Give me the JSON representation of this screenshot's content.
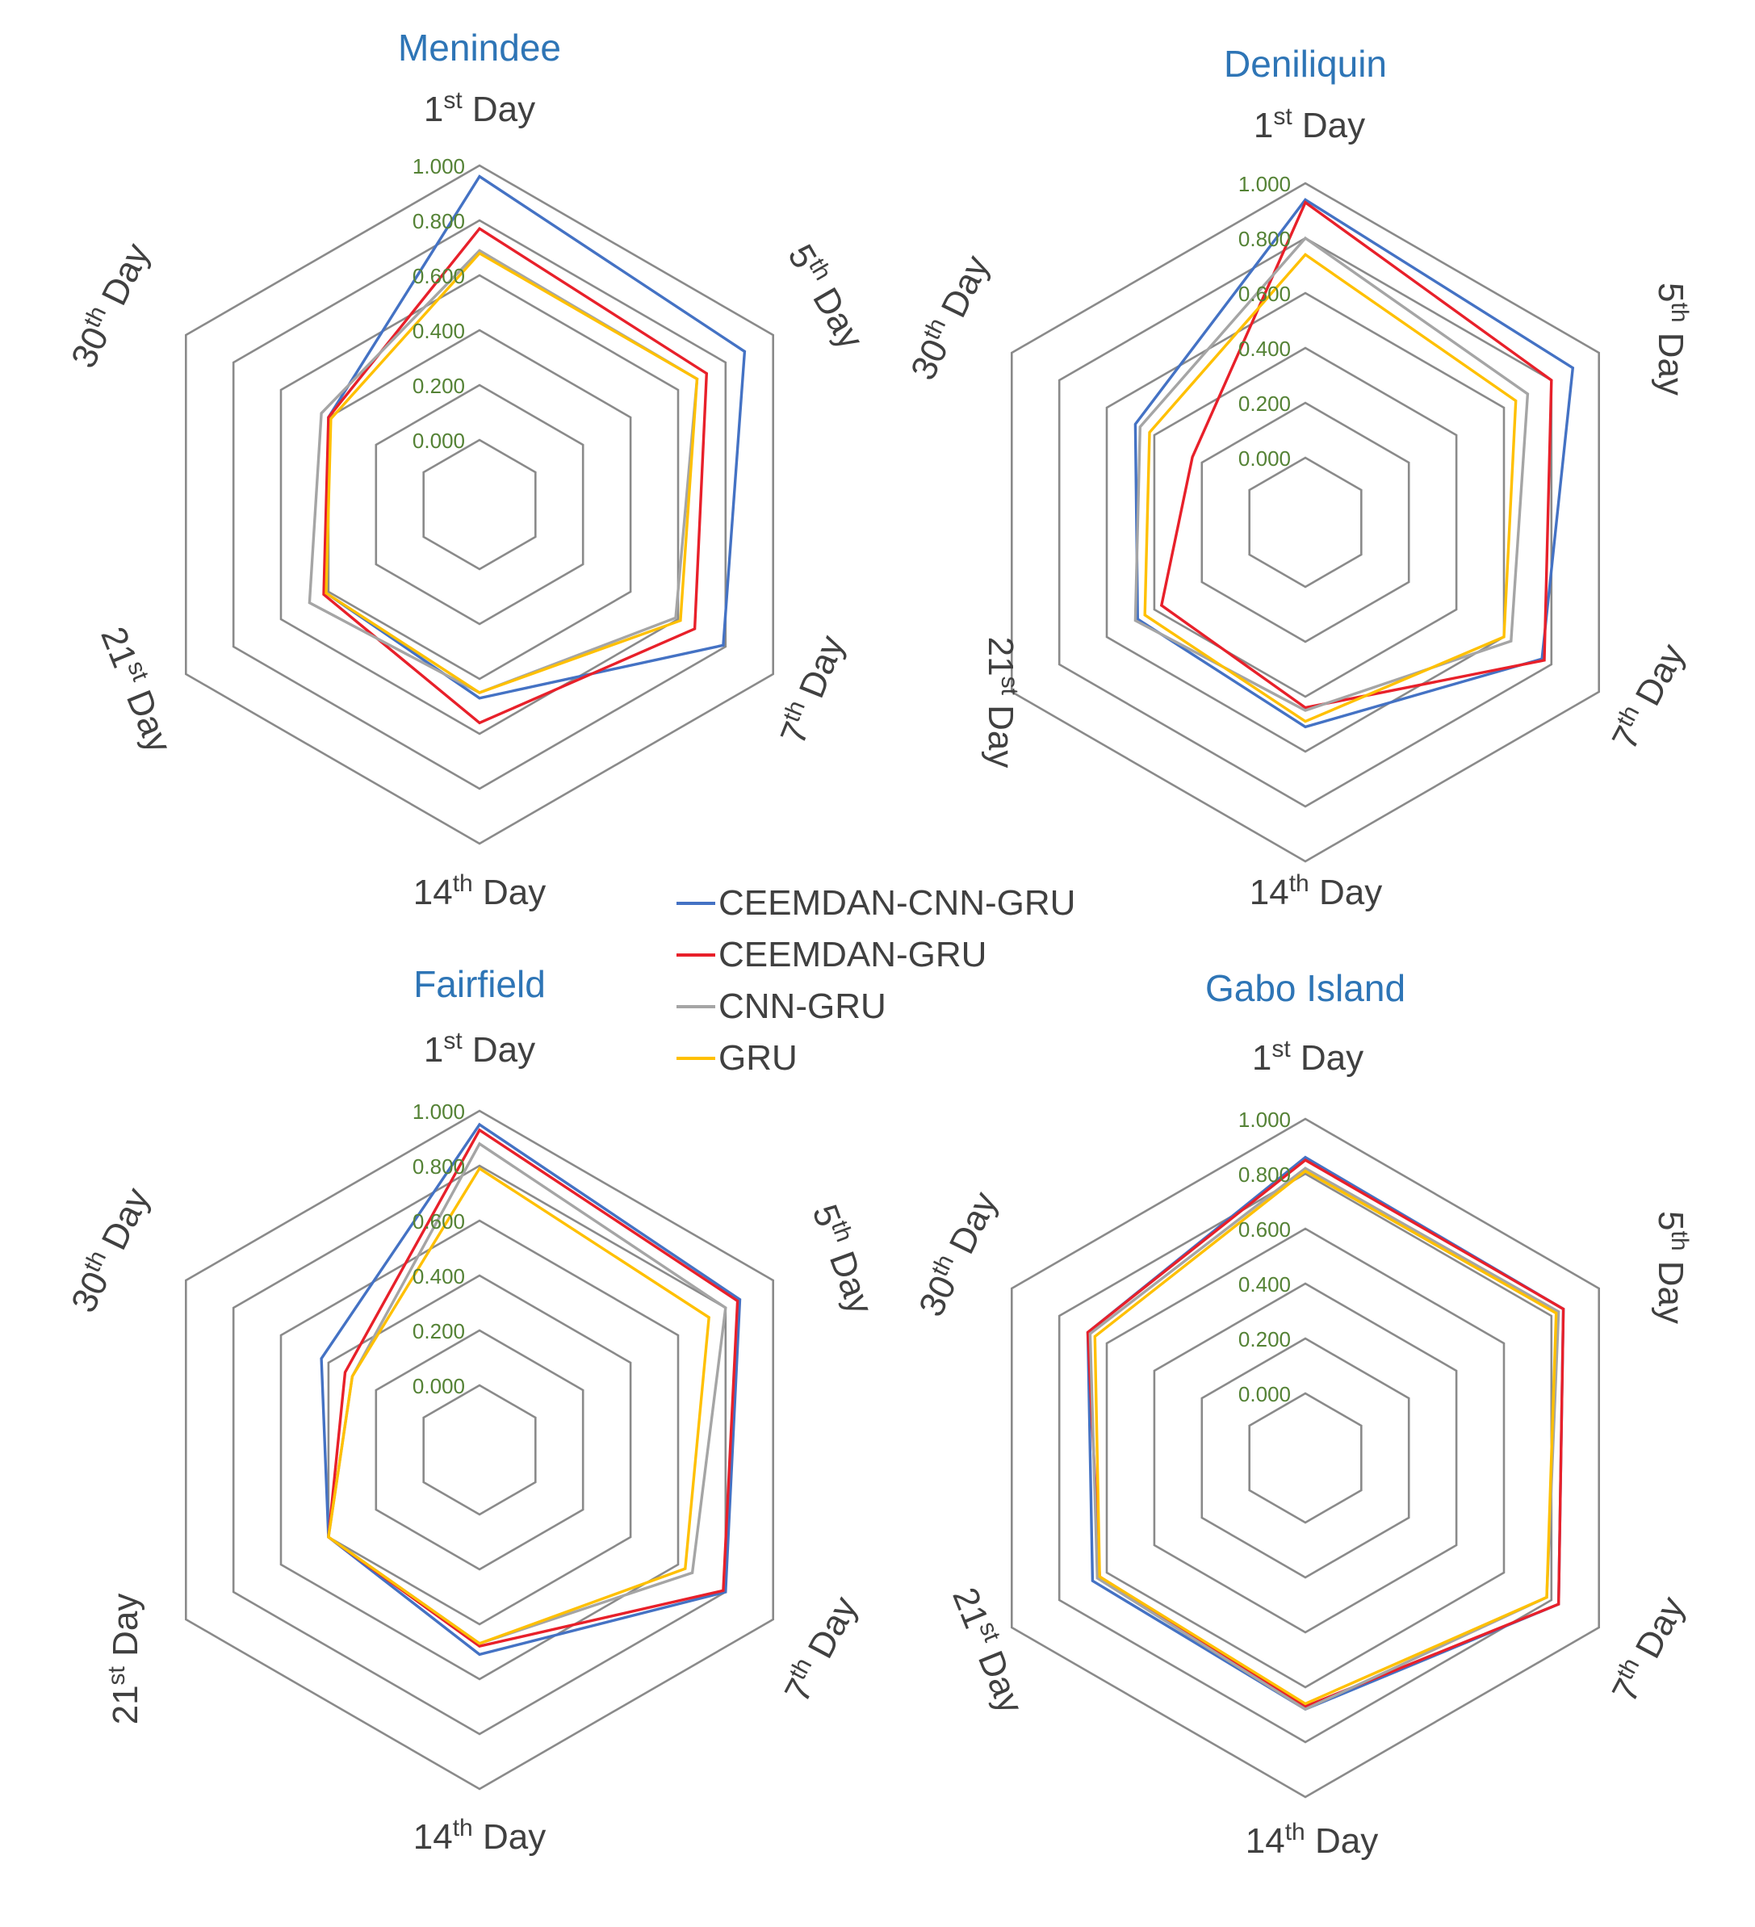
{
  "legend": [
    {
      "label": "CEEMDAN-CNN-GRU",
      "color": "#4472C4"
    },
    {
      "label": "CEEMDAN-GRU",
      "color": "#E8202A"
    },
    {
      "label": "CNN-GRU",
      "color": "#A5A5A5"
    },
    {
      "label": "GRU",
      "color": "#FFC000"
    }
  ],
  "chart_data": [
    {
      "type": "radar",
      "title": "Menindee",
      "axes": [
        {
          "base": "1",
          "sup": "st",
          "rest": " Day"
        },
        {
          "base": "5",
          "sup": "th",
          "rest": " Day"
        },
        {
          "base": "7",
          "sup": "th",
          "rest": " Day"
        },
        {
          "base": "14",
          "sup": "th",
          "rest": " Day"
        },
        {
          "base": "21",
          "sup": "st",
          "rest": " Day"
        },
        {
          "base": "30",
          "sup": "th",
          "rest": " Day"
        }
      ],
      "ticks": [
        "0.000",
        "0.200",
        "0.400",
        "0.600",
        "0.800",
        "1.000"
      ],
      "range": [
        0,
        1
      ],
      "series": [
        {
          "name": "CEEMDAN-CNN-GRU",
          "values": [
            0.96,
            0.88,
            0.79,
            0.47,
            0.41,
            0.4
          ]
        },
        {
          "name": "CEEMDAN-GRU",
          "values": [
            0.77,
            0.72,
            0.67,
            0.56,
            0.42,
            0.4
          ]
        },
        {
          "name": "CNN-GRU",
          "values": [
            0.69,
            0.68,
            0.59,
            0.45,
            0.48,
            0.43
          ]
        },
        {
          "name": "GRU",
          "values": [
            0.68,
            0.68,
            0.61,
            0.45,
            0.41,
            0.39
          ]
        }
      ]
    },
    {
      "type": "radar",
      "title": "Deniliquin",
      "axes": [
        {
          "base": "1",
          "sup": "st",
          "rest": " Day"
        },
        {
          "base": "5",
          "sup": "th",
          "rest": " Day"
        },
        {
          "base": "7",
          "sup": "th",
          "rest": " Day"
        },
        {
          "base": "14",
          "sup": "th",
          "rest": " Day"
        },
        {
          "base": "21",
          "sup": "st",
          "rest": " Day"
        },
        {
          "base": "30",
          "sup": "th",
          "rest": " Day"
        }
      ],
      "ticks": [
        "0.000",
        "0.200",
        "0.400",
        "0.600",
        "0.800",
        "1.000"
      ],
      "range": [
        0,
        1
      ],
      "series": [
        {
          "name": "CEEMDAN-CNN-GRU",
          "values": [
            0.94,
            0.89,
            0.76,
            0.51,
            0.47,
            0.48
          ]
        },
        {
          "name": "CEEMDAN-GRU",
          "values": [
            0.93,
            0.8,
            0.77,
            0.44,
            0.37,
            0.24
          ]
        },
        {
          "name": "CNN-GRU",
          "values": [
            0.8,
            0.7,
            0.63,
            0.45,
            0.48,
            0.46
          ]
        },
        {
          "name": "GRU",
          "values": [
            0.74,
            0.65,
            0.6,
            0.49,
            0.44,
            0.42
          ]
        }
      ]
    },
    {
      "type": "radar",
      "title": "Fairfield",
      "axes": [
        {
          "base": "1",
          "sup": "st",
          "rest": " Day"
        },
        {
          "base": "5",
          "sup": "th",
          "rest": " Day"
        },
        {
          "base": "7",
          "sup": "th",
          "rest": " Day"
        },
        {
          "base": "14",
          "sup": "th",
          "rest": " Day"
        },
        {
          "base": "21",
          "sup": "st",
          "rest": " Day"
        },
        {
          "base": "30",
          "sup": "th",
          "rest": " Day"
        }
      ],
      "ticks": [
        "0.000",
        "0.200",
        "0.400",
        "0.600",
        "0.800",
        "1.000"
      ],
      "range": [
        0,
        1
      ],
      "series": [
        {
          "name": "CEEMDAN-CNN-GRU",
          "values": [
            0.95,
            0.86,
            0.8,
            0.51,
            0.4,
            0.43
          ]
        },
        {
          "name": "CEEMDAN-GRU",
          "values": [
            0.93,
            0.85,
            0.79,
            0.48,
            0.4,
            0.33
          ]
        },
        {
          "name": "CNN-GRU",
          "values": [
            0.88,
            0.8,
            0.66,
            0.47,
            0.4,
            0.3
          ]
        },
        {
          "name": "GRU",
          "values": [
            0.79,
            0.73,
            0.63,
            0.47,
            0.4,
            0.3
          ]
        }
      ]
    },
    {
      "type": "radar",
      "title": "Gabo Island",
      "axes": [
        {
          "base": "1",
          "sup": "st",
          "rest": " Day"
        },
        {
          "base": "5",
          "sup": "th",
          "rest": " Day"
        },
        {
          "base": "7",
          "sup": "th",
          "rest": " Day"
        },
        {
          "base": "14",
          "sup": "th",
          "rest": " Day"
        },
        {
          "base": "21",
          "sup": "st",
          "rest": " Day"
        },
        {
          "base": "30",
          "sup": "th",
          "rest": " Day"
        }
      ],
      "ticks": [
        "0.000",
        "0.200",
        "0.400",
        "0.600",
        "0.800",
        "1.000"
      ],
      "range": [
        0,
        1
      ],
      "series": [
        {
          "name": "CEEMDAN-CNN-GRU",
          "values": [
            0.86,
            0.85,
            0.83,
            0.68,
            0.66,
            0.68
          ]
        },
        {
          "name": "CEEMDAN-GRU",
          "values": [
            0.85,
            0.85,
            0.83,
            0.67,
            0.63,
            0.68
          ]
        },
        {
          "name": "CNN-GRU",
          "values": [
            0.82,
            0.83,
            0.78,
            0.68,
            0.64,
            0.67
          ]
        },
        {
          "name": "GRU",
          "values": [
            0.81,
            0.82,
            0.78,
            0.66,
            0.63,
            0.65
          ]
        }
      ]
    }
  ]
}
